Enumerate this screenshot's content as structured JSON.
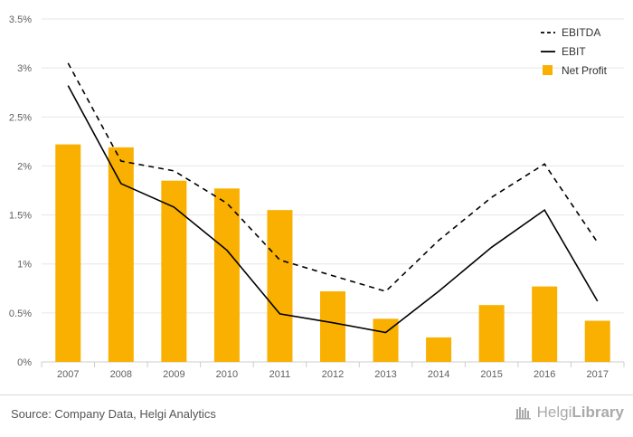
{
  "chart_data": {
    "type": "bar",
    "categories": [
      "2007",
      "2008",
      "2009",
      "2010",
      "2011",
      "2012",
      "2013",
      "2014",
      "2015",
      "2016",
      "2017"
    ],
    "series": [
      {
        "name": "EBITDA",
        "type": "line",
        "style": "dashed",
        "color": "#000000",
        "values": [
          3.05,
          2.05,
          1.95,
          1.62,
          1.04,
          0.88,
          0.72,
          1.24,
          1.68,
          2.02,
          1.22
        ]
      },
      {
        "name": "EBIT",
        "type": "line",
        "style": "solid",
        "color": "#000000",
        "values": [
          2.82,
          1.82,
          1.58,
          1.14,
          0.49,
          0.4,
          0.3,
          0.72,
          1.17,
          1.55,
          0.62
        ]
      },
      {
        "name": "Net Profit",
        "type": "bar",
        "color": "#f9b000",
        "values": [
          2.22,
          2.19,
          1.85,
          1.77,
          1.55,
          0.72,
          0.44,
          0.25,
          0.58,
          0.77,
          0.42
        ]
      }
    ],
    "yticks": [
      "0%",
      "0.5%",
      "1%",
      "1.5%",
      "2%",
      "2.5%",
      "3%",
      "3.5%"
    ],
    "ylim": [
      0,
      3.5
    ],
    "legend_position": "top-right",
    "grid": true
  },
  "footer": {
    "source": "Source: Company Data, Helgi Analytics",
    "brand_regular": "Helgi",
    "brand_bold": "Library"
  },
  "brand_icon": "library-books-icon"
}
